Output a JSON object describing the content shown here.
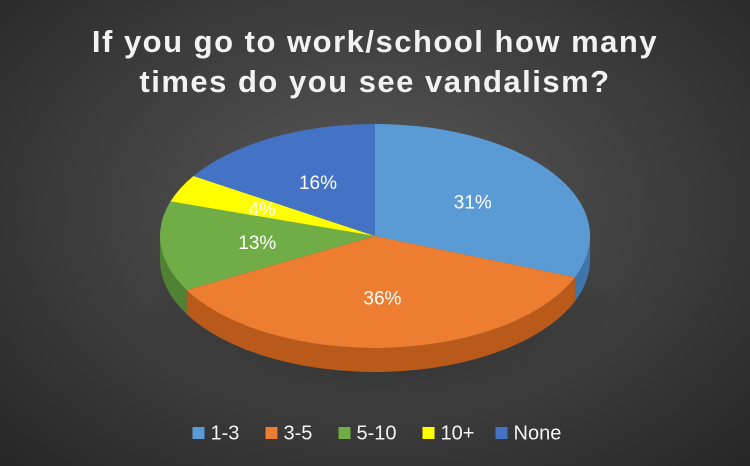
{
  "chart_data": {
    "type": "pie",
    "title_lines": [
      "If you go to work/school how many",
      "times do you see vandalism?"
    ],
    "categories": [
      "1-3",
      "3-5",
      "5-10",
      "10+",
      "None"
    ],
    "values": [
      31,
      36,
      13,
      4,
      16
    ],
    "labels": [
      "31%",
      "36%",
      "13%",
      "4%",
      "16%"
    ],
    "colors": [
      "#5b9bd5",
      "#ed7d31",
      "#70ad47",
      "#ffff00",
      "#4472c4"
    ],
    "side_colors": [
      "#3f76aa",
      "#b95a1a",
      "#4f8232",
      "#b8b800",
      "#2f5597"
    ],
    "legend_position": "bottom",
    "style": "3d"
  }
}
